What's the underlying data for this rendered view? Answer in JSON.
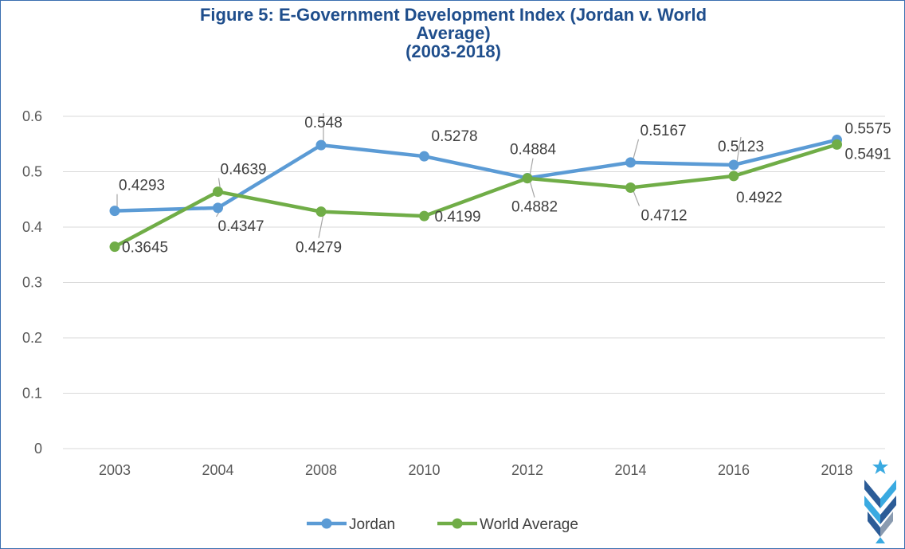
{
  "chart_data": {
    "type": "line",
    "title_lines": [
      "Figure 5: E-Government Development Index (Jordan v. World",
      "Average)",
      "(2003-2018)"
    ],
    "categories": [
      "2003",
      "2004",
      "2008",
      "2010",
      "2012",
      "2014",
      "2016",
      "2018"
    ],
    "ylim": [
      0,
      0.6
    ],
    "yticks": [
      "0",
      "0.1",
      "0.2",
      "0.3",
      "0.4",
      "0.5",
      "0.6"
    ],
    "grid": true,
    "legend_position": "bottom",
    "series": [
      {
        "name": "Jordan",
        "color": "#5b9bd5",
        "values": [
          0.4293,
          0.4347,
          0.548,
          0.5278,
          0.4884,
          0.5167,
          0.5123,
          0.5575
        ],
        "labels": [
          "0.4293",
          "0.4347",
          "0.548",
          "0.5278",
          "0.4884",
          "0.5167",
          "0.5123",
          "0.5575"
        ]
      },
      {
        "name": "World Average",
        "color": "#70ad47",
        "values": [
          0.3645,
          0.4639,
          0.4279,
          0.4199,
          0.4882,
          0.4712,
          0.4922,
          0.5491
        ],
        "labels": [
          "0.3645",
          "0.4639",
          "0.4279",
          "0.4199",
          "0.4882",
          "0.4712",
          "0.4922",
          "0.5491"
        ]
      }
    ]
  },
  "logo": {
    "icon": "logo-icon",
    "colors": [
      "#3aaae1",
      "#2c5c97",
      "#8a9bb0"
    ]
  }
}
